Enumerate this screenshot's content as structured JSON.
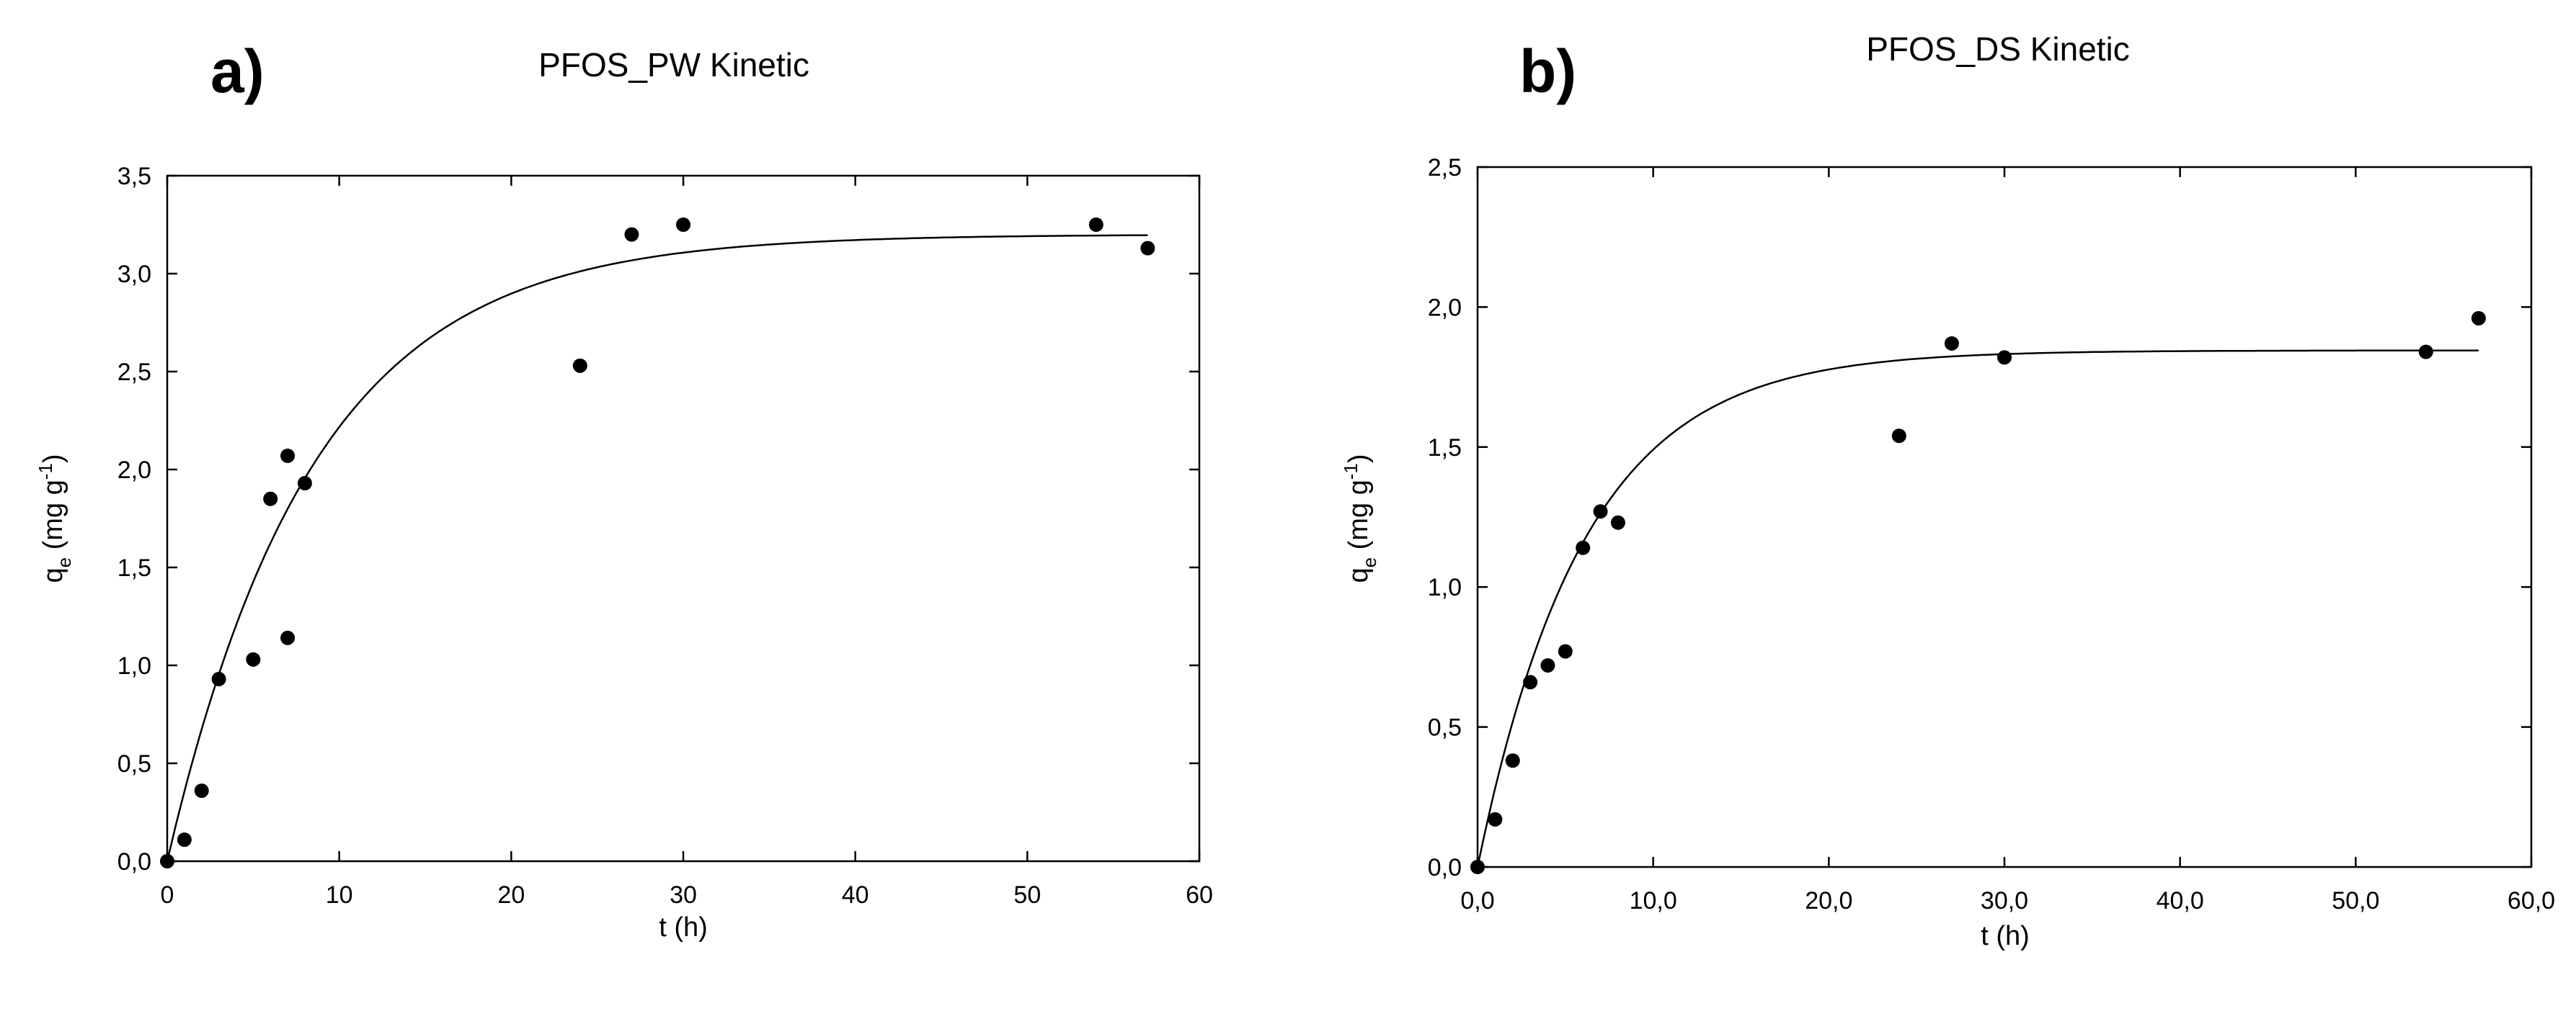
{
  "chart_data": [
    {
      "type": "scatter",
      "panel": "a)",
      "title": "PFOS_PW Kinetic",
      "xlabel": "t (h)",
      "ylabel": {
        "base": "q",
        "sub": "e",
        "rest": " (mg g",
        "sup": "-1",
        "end": ")"
      },
      "xlim": [
        0,
        60
      ],
      "ylim": [
        0,
        3.5
      ],
      "xticks": [
        "0",
        "10",
        "20",
        "30",
        "40",
        "50",
        "60"
      ],
      "yticks": [
        "0,0",
        "0,5",
        "1,0",
        "1,5",
        "2,0",
        "2,5",
        "3,0",
        "3,5"
      ],
      "grid": false,
      "series": [
        {
          "points": [
            [
              0,
              0.0
            ],
            [
              1,
              0.11
            ],
            [
              2,
              0.36
            ],
            [
              3,
              0.93
            ],
            [
              5,
              1.03
            ],
            [
              6,
              1.85
            ],
            [
              7,
              2.07
            ],
            [
              7,
              1.14
            ],
            [
              8,
              1.93
            ],
            [
              24,
              2.53
            ],
            [
              27,
              3.2
            ],
            [
              30,
              3.25
            ],
            [
              54,
              3.25
            ],
            [
              57,
              3.13
            ]
          ]
        }
      ],
      "fit": {
        "qe": 3.2,
        "k": 0.118,
        "x_end": 57
      }
    },
    {
      "type": "scatter",
      "panel": "b)",
      "title": "PFOS_DS Kinetic",
      "xlabel": "t (h)",
      "ylabel": {
        "base": "q",
        "sub": "e",
        "rest": " (mg g",
        "sup": "-1",
        "end": ")"
      },
      "xlim": [
        0,
        60
      ],
      "ylim": [
        0,
        2.5
      ],
      "xticks": [
        "0,0",
        "10,0",
        "20,0",
        "30,0",
        "40,0",
        "50,0",
        "60,0"
      ],
      "yticks": [
        "0,0",
        "0,5",
        "1,0",
        "1,5",
        "2,0",
        "2,5"
      ],
      "grid": false,
      "series": [
        {
          "points": [
            [
              0,
              0.0
            ],
            [
              1,
              0.17
            ],
            [
              2,
              0.38
            ],
            [
              3,
              0.66
            ],
            [
              4,
              0.72
            ],
            [
              5,
              0.77
            ],
            [
              6,
              1.14
            ],
            [
              7,
              1.27
            ],
            [
              8,
              1.23
            ],
            [
              24,
              1.54
            ],
            [
              27,
              1.87
            ],
            [
              30,
              1.82
            ],
            [
              54,
              1.84
            ],
            [
              57,
              1.96
            ]
          ]
        }
      ],
      "fit": {
        "qe": 1.845,
        "k": 0.165,
        "x_end": 57
      }
    }
  ]
}
